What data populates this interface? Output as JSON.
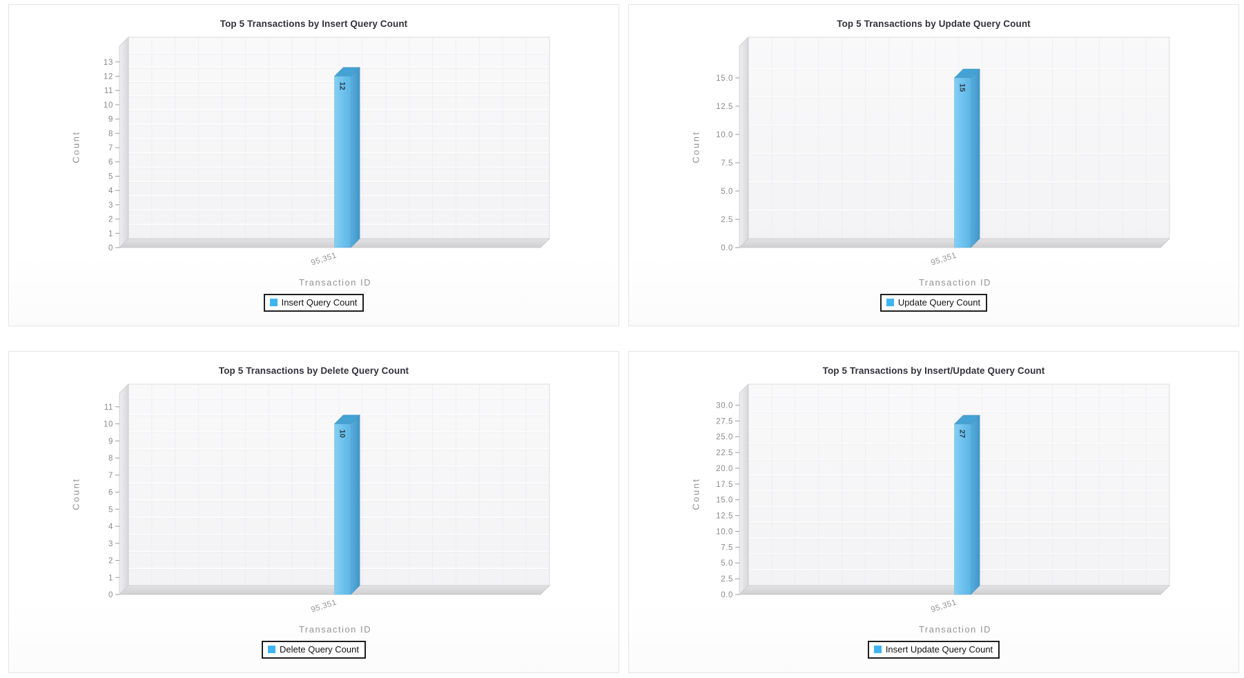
{
  "style": {
    "panel_border": "#e4e4e6",
    "title_text": "#32323c",
    "axis_text": "#8a8a8a",
    "label_text": "#939393",
    "bar_value_text": "#2c3e4a",
    "legend_swatch": "#3eb5f1",
    "bar_front_light": "#83cff5",
    "bar_front_dark": "#5bb5e6",
    "bar_side_light": "#57aede",
    "bar_side_dark": "#4096c8",
    "bar_top": "#44a2d4",
    "wall_light": "#efeff1",
    "wall_dark": "#d8d8da",
    "floor_light": "#e3e3e5",
    "floor_dark": "#cfcfd2",
    "plot_bg_light": "#f9f9fa",
    "plot_bg_dark": "#f3f3f5",
    "grid_line": "#e9e8ec",
    "tick_mark": "#9a9a9a"
  },
  "chart_data": [
    {
      "type": "bar",
      "title": "Top 5 Transactions by Insert Query Count",
      "xlabel": "Transaction ID",
      "ylabel": "Count",
      "categories": [
        "95,351"
      ],
      "series": [
        {
          "name": "Insert Query Count",
          "values": [
            12
          ]
        }
      ],
      "value_labels": [
        "12"
      ],
      "ylim": [
        0,
        14.1
      ],
      "yticks": [
        "0",
        "1",
        "2",
        "3",
        "4",
        "5",
        "6",
        "7",
        "8",
        "9",
        "10",
        "11",
        "12",
        "13"
      ],
      "legend_position": "bottom",
      "grid": true
    },
    {
      "type": "bar",
      "title": "Top 5 Transactions by Update Query Count",
      "xlabel": "Transaction ID",
      "ylabel": "Count",
      "categories": [
        "95,351"
      ],
      "series": [
        {
          "name": "Update Query Count",
          "values": [
            15
          ]
        }
      ],
      "value_labels": [
        "15"
      ],
      "ylim": [
        0,
        17.8
      ],
      "yticks": [
        "0.0",
        "2.5",
        "5.0",
        "7.5",
        "10.0",
        "12.5",
        "15.0"
      ],
      "legend_position": "bottom",
      "grid": true
    },
    {
      "type": "bar",
      "title": "Top 5 Transactions by Delete Query Count",
      "xlabel": "Transaction ID",
      "ylabel": "Count",
      "categories": [
        "95,351"
      ],
      "series": [
        {
          "name": "Delete Query Count",
          "values": [
            10
          ]
        }
      ],
      "value_labels": [
        "10"
      ],
      "ylim": [
        0,
        11.8
      ],
      "yticks": [
        "0",
        "1",
        "2",
        "3",
        "4",
        "5",
        "6",
        "7",
        "8",
        "9",
        "10",
        "11"
      ],
      "legend_position": "bottom",
      "grid": true
    },
    {
      "type": "bar",
      "title": "Top 5 Transactions by Insert/Update Query Count",
      "xlabel": "Transaction ID",
      "ylabel": "Count",
      "categories": [
        "95,351"
      ],
      "series": [
        {
          "name": "Insert Update Query Count",
          "values": [
            27
          ]
        }
      ],
      "value_labels": [
        "27"
      ],
      "ylim": [
        0,
        31.9
      ],
      "yticks": [
        "0.0",
        "2.5",
        "5.0",
        "7.5",
        "10.0",
        "12.5",
        "15.0",
        "17.5",
        "20.0",
        "22.5",
        "25.0",
        "27.5",
        "30.0"
      ],
      "legend_position": "bottom",
      "grid": true
    }
  ]
}
